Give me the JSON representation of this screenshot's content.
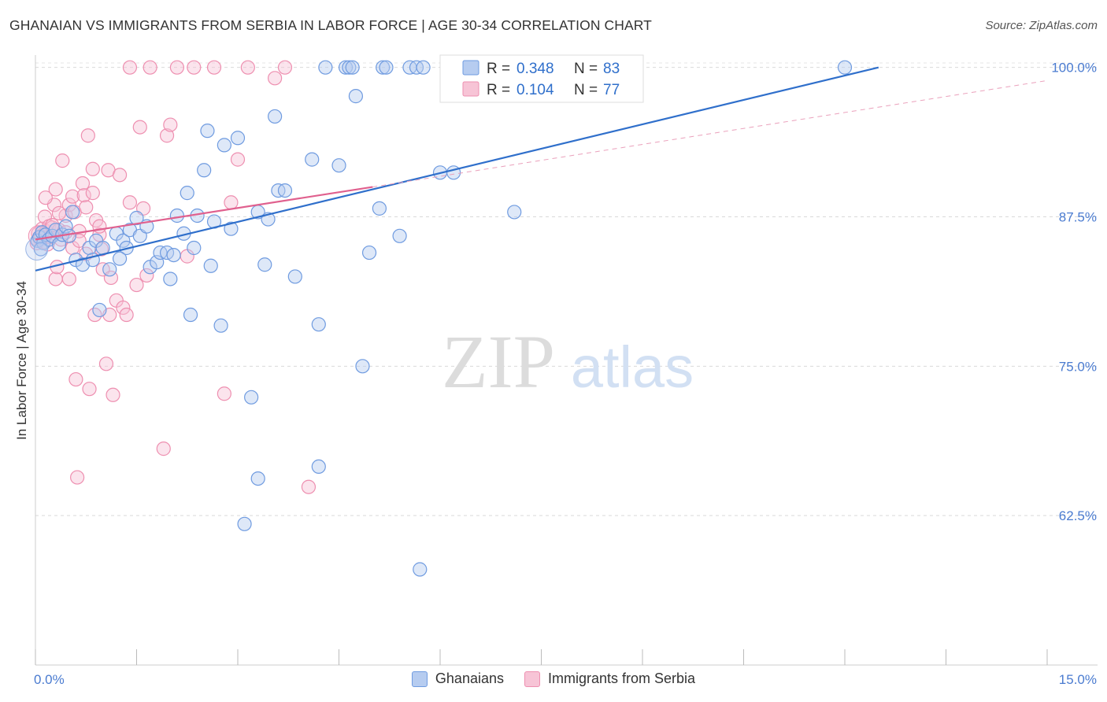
{
  "chart_data": {
    "type": "scatter",
    "title": "GHANAIAN VS IMMIGRANTS FROM SERBIA IN LABOR FORCE | AGE 30-34 CORRELATION CHART",
    "source": "Source: ZipAtlas.com",
    "xlabel": "",
    "ylabel": "In Labor Force | Age 30-34",
    "xlim": [
      0,
      15
    ],
    "ylim": [
      50,
      100.9
    ],
    "x_tick_labels": {
      "left": "0.0%",
      "right": "15.0%"
    },
    "y_ticks": [
      {
        "value": 100.0,
        "label": "100.0%"
      },
      {
        "value": 87.5,
        "label": "87.5%"
      },
      {
        "value": 75.0,
        "label": "75.0%"
      },
      {
        "value": 62.5,
        "label": "62.5%"
      }
    ],
    "watermark": {
      "part1": "ZIP",
      "part2": "atlas"
    },
    "legend_box": [
      {
        "r_label": "R = ",
        "r_value": "0.348",
        "n_label": "N = ",
        "n_value": "83"
      },
      {
        "r_label": "R = ",
        "r_value": "0.104",
        "n_label": "N = ",
        "n_value": "77"
      }
    ],
    "series": [
      {
        "name": "Ghanaians",
        "color": "#6f9be0",
        "fill": "#b6ccf0",
        "line": {
          "x1": 0.0,
          "y1": 83.0,
          "x2": 12.5,
          "y2": 100.0,
          "color": "#2f6fcb"
        },
        "points": [
          [
            0.03,
            85.5
          ],
          [
            0.06,
            85.8
          ],
          [
            0.1,
            86.2
          ],
          [
            0.12,
            85.3
          ],
          [
            0.15,
            86.0
          ],
          [
            0.2,
            85.6
          ],
          [
            0.25,
            85.9
          ],
          [
            0.3,
            86.4
          ],
          [
            0.35,
            85.2
          ],
          [
            0.4,
            86.0
          ],
          [
            0.45,
            86.7
          ],
          [
            0.5,
            85.9
          ],
          [
            0.55,
            87.9
          ],
          [
            0.6,
            83.9
          ],
          [
            0.7,
            83.5
          ],
          [
            0.8,
            84.9
          ],
          [
            0.85,
            83.9
          ],
          [
            0.9,
            85.5
          ],
          [
            0.95,
            79.7
          ],
          [
            1.0,
            84.9
          ],
          [
            1.1,
            83.1
          ],
          [
            1.2,
            86.1
          ],
          [
            1.3,
            85.5
          ],
          [
            1.35,
            84.9
          ],
          [
            1.4,
            86.4
          ],
          [
            1.5,
            87.4
          ],
          [
            1.55,
            85.9
          ],
          [
            1.65,
            86.7
          ],
          [
            1.7,
            83.3
          ],
          [
            1.8,
            83.7
          ],
          [
            1.85,
            84.5
          ],
          [
            1.95,
            84.5
          ],
          [
            2.0,
            82.3
          ],
          [
            2.1,
            87.6
          ],
          [
            2.2,
            86.1
          ],
          [
            2.25,
            89.5
          ],
          [
            2.3,
            79.3
          ],
          [
            2.35,
            84.9
          ],
          [
            2.4,
            87.6
          ],
          [
            2.5,
            91.4
          ],
          [
            2.55,
            94.7
          ],
          [
            2.6,
            83.4
          ],
          [
            2.65,
            87.1
          ],
          [
            2.75,
            78.4
          ],
          [
            2.8,
            93.5
          ],
          [
            2.9,
            86.5
          ],
          [
            3.0,
            94.1
          ],
          [
            3.1,
            61.8
          ],
          [
            3.2,
            72.4
          ],
          [
            3.3,
            65.6
          ],
          [
            3.3,
            87.9
          ],
          [
            3.4,
            83.5
          ],
          [
            3.45,
            87.3
          ],
          [
            3.55,
            95.9
          ],
          [
            3.6,
            89.7
          ],
          [
            3.7,
            89.7
          ],
          [
            3.85,
            82.5
          ],
          [
            4.1,
            92.3
          ],
          [
            4.2,
            66.6
          ],
          [
            4.2,
            78.5
          ],
          [
            4.3,
            100.0
          ],
          [
            4.5,
            91.8
          ],
          [
            4.6,
            100.0
          ],
          [
            4.65,
            100.0
          ],
          [
            4.7,
            100.0
          ],
          [
            4.75,
            97.6
          ],
          [
            4.85,
            75.0
          ],
          [
            4.95,
            84.5
          ],
          [
            5.1,
            88.2
          ],
          [
            5.15,
            100.0
          ],
          [
            5.2,
            100.0
          ],
          [
            5.4,
            85.9
          ],
          [
            5.55,
            100.0
          ],
          [
            5.65,
            100.0
          ],
          [
            5.75,
            100.0
          ],
          [
            5.7,
            58.0
          ],
          [
            6.0,
            91.2
          ],
          [
            6.2,
            91.2
          ],
          [
            7.1,
            87.9
          ],
          [
            12.0,
            100.0
          ],
          [
            0.08,
            84.8
          ],
          [
            2.05,
            84.3
          ],
          [
            1.25,
            84.0
          ]
        ]
      },
      {
        "name": "Immigrants from Serbia",
        "color": "#ee8fb0",
        "fill": "#f7c4d6",
        "line": {
          "x1": 0.0,
          "y1": 85.6,
          "x2": 5.0,
          "y2": 90.0,
          "color": "#e0608e"
        },
        "dashed_line": {
          "x1": 5.0,
          "y1": 90.0,
          "x2": 15.0,
          "y2": 98.9,
          "color": "#eaa0bb"
        },
        "points": [
          [
            0.02,
            85.3
          ],
          [
            0.04,
            86.1
          ],
          [
            0.06,
            85.7
          ],
          [
            0.08,
            85.9
          ],
          [
            0.1,
            86.5
          ],
          [
            0.12,
            85.4
          ],
          [
            0.14,
            87.5
          ],
          [
            0.16,
            86.3
          ],
          [
            0.18,
            85.2
          ],
          [
            0.2,
            86.7
          ],
          [
            0.22,
            85.8
          ],
          [
            0.25,
            86.6
          ],
          [
            0.28,
            88.5
          ],
          [
            0.3,
            89.8
          ],
          [
            0.3,
            82.3
          ],
          [
            0.32,
            83.3
          ],
          [
            0.35,
            86.4
          ],
          [
            0.38,
            85.6
          ],
          [
            0.4,
            92.2
          ],
          [
            0.45,
            87.6
          ],
          [
            0.5,
            88.5
          ],
          [
            0.5,
            82.3
          ],
          [
            0.55,
            89.2
          ],
          [
            0.58,
            87.9
          ],
          [
            0.6,
            73.9
          ],
          [
            0.62,
            65.7
          ],
          [
            0.65,
            86.3
          ],
          [
            0.7,
            90.3
          ],
          [
            0.72,
            89.3
          ],
          [
            0.75,
            84.4
          ],
          [
            0.78,
            94.3
          ],
          [
            0.8,
            73.1
          ],
          [
            0.85,
            89.5
          ],
          [
            0.88,
            79.3
          ],
          [
            0.9,
            87.2
          ],
          [
            0.95,
            86.0
          ],
          [
            0.98,
            84.8
          ],
          [
            1.0,
            83.1
          ],
          [
            1.05,
            75.2
          ],
          [
            1.08,
            91.4
          ],
          [
            1.1,
            79.3
          ],
          [
            1.12,
            82.4
          ],
          [
            1.15,
            72.6
          ],
          [
            1.2,
            80.5
          ],
          [
            1.25,
            91.0
          ],
          [
            1.3,
            79.9
          ],
          [
            1.35,
            79.3
          ],
          [
            1.4,
            88.7
          ],
          [
            1.5,
            81.8
          ],
          [
            1.55,
            95.0
          ],
          [
            1.6,
            88.2
          ],
          [
            1.65,
            82.6
          ],
          [
            1.7,
            100.0
          ],
          [
            1.9,
            68.1
          ],
          [
            1.95,
            94.3
          ],
          [
            2.0,
            95.2
          ],
          [
            2.1,
            100.0
          ],
          [
            2.25,
            84.2
          ],
          [
            2.35,
            100.0
          ],
          [
            2.65,
            100.0
          ],
          [
            2.8,
            72.7
          ],
          [
            2.9,
            88.7
          ],
          [
            3.0,
            92.3
          ],
          [
            3.15,
            100.0
          ],
          [
            3.55,
            99.1
          ],
          [
            3.7,
            100.0
          ],
          [
            4.05,
            64.9
          ],
          [
            0.15,
            89.1
          ],
          [
            0.25,
            86.8
          ],
          [
            0.35,
            87.8
          ],
          [
            0.45,
            86.2
          ],
          [
            0.55,
            84.9
          ],
          [
            0.65,
            85.5
          ],
          [
            0.75,
            88.3
          ],
          [
            0.85,
            91.5
          ],
          [
            0.95,
            86.7
          ],
          [
            1.4,
            100.0
          ]
        ]
      }
    ]
  }
}
